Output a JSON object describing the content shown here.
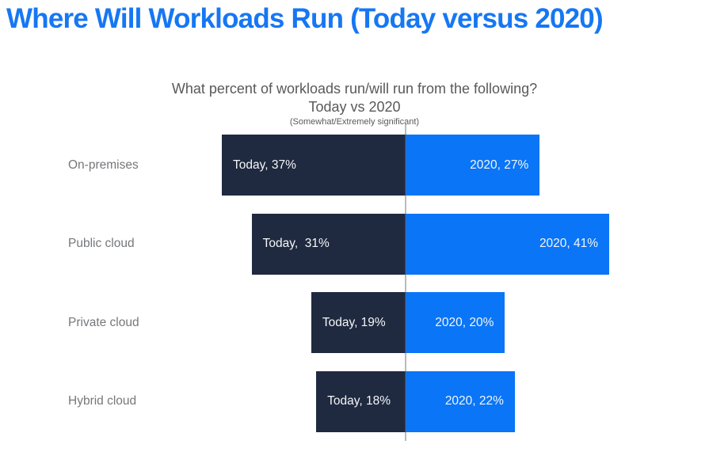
{
  "page": {
    "title": "Where Will Workloads Run (Today versus 2020)",
    "title_color": "#1677F3",
    "background_color": "#FFFFFF"
  },
  "chart_data": {
    "type": "bar",
    "variant": "diverging-horizontal",
    "title": "What percent of workloads run/will run from the following? Today vs 2020",
    "title_lines": [
      "What percent of workloads run/will run from the following?",
      "Today vs 2020"
    ],
    "subtitle_note": "(Somewhat/Extremely significant)",
    "categories": [
      "On-premises",
      "Public cloud",
      "Private cloud",
      "Hybrid cloud"
    ],
    "series": [
      {
        "name": "Today",
        "direction": "left",
        "color": "#1F2A40",
        "values": [
          37,
          31,
          19,
          18
        ]
      },
      {
        "name": "2020",
        "direction": "right",
        "color": "#0A75F6",
        "values": [
          27,
          41,
          20,
          22
        ]
      }
    ],
    "data_labels": [
      [
        "Today, 37%",
        "2020, 27%"
      ],
      [
        "Today,  31%",
        "2020, 41%"
      ],
      [
        "Today, 19%",
        "2020, 20%"
      ],
      [
        "Today, 18%",
        "2020, 22%"
      ]
    ],
    "unit": "%",
    "xlim": [
      -45,
      45
    ],
    "grid": false,
    "legend_position": "none",
    "baseline_color": "rgba(100,105,110,0.45)",
    "label_text_color": "#F4F6F8",
    "category_label_color": "#75777A",
    "chart_title_color": "#595959"
  }
}
